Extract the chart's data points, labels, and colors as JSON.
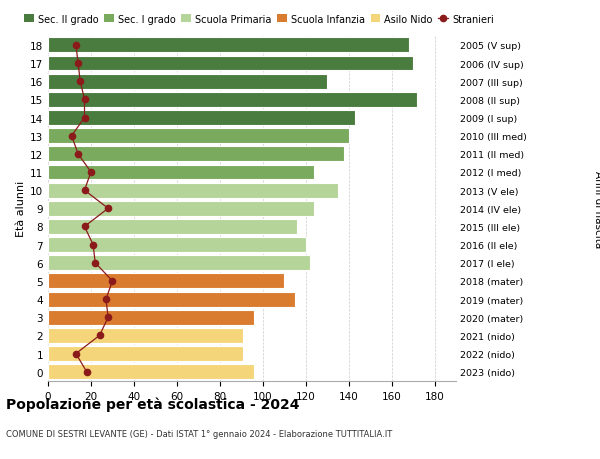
{
  "ages": [
    18,
    17,
    16,
    15,
    14,
    13,
    12,
    11,
    10,
    9,
    8,
    7,
    6,
    5,
    4,
    3,
    2,
    1,
    0
  ],
  "right_labels": [
    "2005 (V sup)",
    "2006 (IV sup)",
    "2007 (III sup)",
    "2008 (II sup)",
    "2009 (I sup)",
    "2010 (III med)",
    "2011 (II med)",
    "2012 (I med)",
    "2013 (V ele)",
    "2014 (IV ele)",
    "2015 (III ele)",
    "2016 (II ele)",
    "2017 (I ele)",
    "2018 (mater)",
    "2019 (mater)",
    "2020 (mater)",
    "2021 (nido)",
    "2022 (nido)",
    "2023 (nido)"
  ],
  "bar_values": [
    168,
    170,
    130,
    172,
    143,
    140,
    138,
    124,
    135,
    124,
    116,
    120,
    122,
    110,
    115,
    96,
    91,
    91,
    96
  ],
  "stranieri_values": [
    13,
    14,
    15,
    17,
    17,
    11,
    14,
    20,
    17,
    28,
    17,
    21,
    22,
    30,
    27,
    28,
    24,
    13,
    18
  ],
  "bar_colors": [
    "#4a7c3f",
    "#4a7c3f",
    "#4a7c3f",
    "#4a7c3f",
    "#4a7c3f",
    "#7aaa5e",
    "#7aaa5e",
    "#7aaa5e",
    "#b5d49a",
    "#b5d49a",
    "#b5d49a",
    "#b5d49a",
    "#b5d49a",
    "#d97c30",
    "#d97c30",
    "#d97c30",
    "#f5d57a",
    "#f5d57a",
    "#f5d57a"
  ],
  "legend_labels": [
    "Sec. II grado",
    "Sec. I grado",
    "Scuola Primaria",
    "Scuola Infanzia",
    "Asilo Nido",
    "Stranieri"
  ],
  "legend_colors": [
    "#4a7c3f",
    "#7aaa5e",
    "#b5d49a",
    "#d97c30",
    "#f5d57a",
    "#8b1a1a"
  ],
  "title": "Popolazione per età scolastica - 2024",
  "subtitle": "COMUNE DI SESTRI LEVANTE (GE) - Dati ISTAT 1° gennaio 2024 - Elaborazione TUTTITALIA.IT",
  "ylabel_left": "Età alunni",
  "ylabel_right": "Anni di nascita",
  "xlim": [
    0,
    190
  ],
  "xticks": [
    0,
    20,
    40,
    60,
    80,
    100,
    120,
    140,
    160,
    180
  ],
  "bar_height": 0.82
}
